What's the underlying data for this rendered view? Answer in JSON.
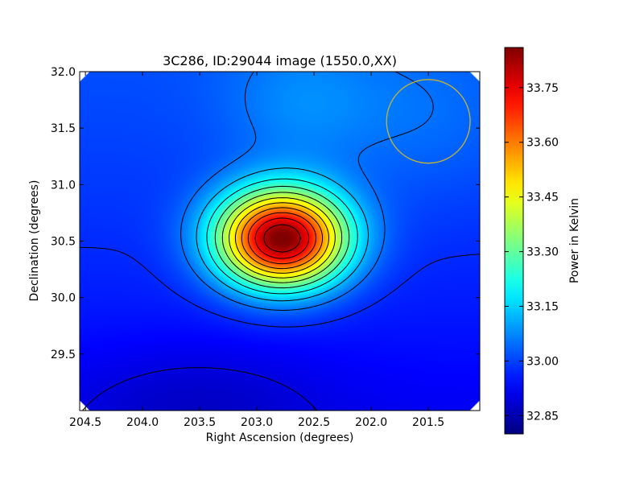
{
  "chart_data": {
    "type": "heatmap",
    "title": "3C286, ID:29044 image (1550.0,XX)",
    "xlabel": "Right Ascension (degrees)",
    "ylabel": "Declination (degrees)",
    "colorbar_label": "Power in Kelvin",
    "colormap": "jet",
    "xlim": [
      204.55,
      201.05
    ],
    "ylim": [
      29.0,
      32.0
    ],
    "clim": [
      32.8,
      33.86
    ],
    "x_ticks": [
      {
        "value": 204.5,
        "label": "204.5"
      },
      {
        "value": 204.0,
        "label": "204.0"
      },
      {
        "value": 203.5,
        "label": "203.5"
      },
      {
        "value": 203.0,
        "label": "203.0"
      },
      {
        "value": 202.5,
        "label": "202.5"
      },
      {
        "value": 202.0,
        "label": "202.0"
      },
      {
        "value": 201.5,
        "label": "201.5"
      }
    ],
    "y_ticks": [
      {
        "value": 29.5,
        "label": "29.5"
      },
      {
        "value": 30.0,
        "label": "30.0"
      },
      {
        "value": 30.5,
        "label": "30.5"
      },
      {
        "value": 31.0,
        "label": "31.0"
      },
      {
        "value": 31.5,
        "label": "31.5"
      },
      {
        "value": 32.0,
        "label": "32.0"
      }
    ],
    "colorbar_ticks": [
      {
        "value": 32.85,
        "label": "32.85"
      },
      {
        "value": 33.0,
        "label": "33.00"
      },
      {
        "value": 33.15,
        "label": "33.15"
      },
      {
        "value": 33.3,
        "label": "33.30"
      },
      {
        "value": 33.45,
        "label": "33.45"
      },
      {
        "value": 33.6,
        "label": "33.60"
      },
      {
        "value": 33.75,
        "label": "33.75"
      }
    ],
    "source": {
      "ra": 202.78,
      "dec": 30.52,
      "peak_kelvin": 33.84
    },
    "beam_circle": {
      "ra": 201.5,
      "dec": 31.56,
      "radius_deg": 0.37,
      "color": "#c8b432"
    },
    "contour_color": "#000000"
  }
}
